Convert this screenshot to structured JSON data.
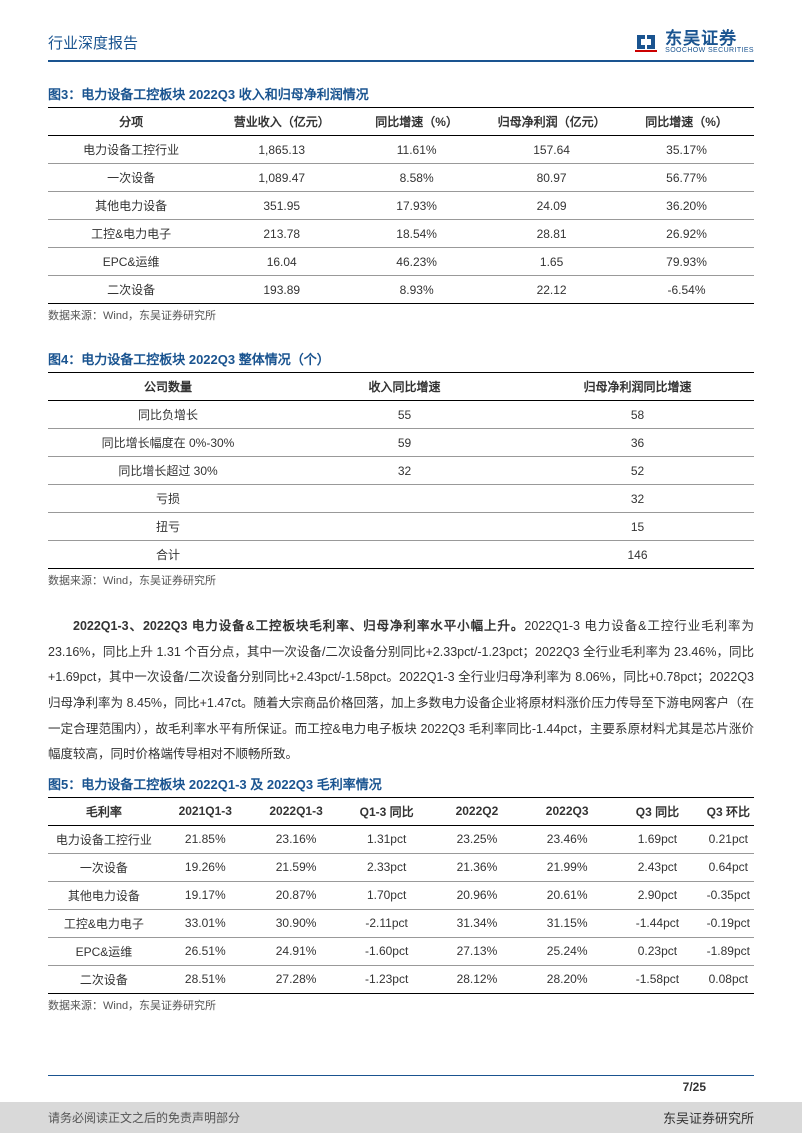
{
  "header": {
    "title": "行业深度报告",
    "logo_cn": "东吴证券",
    "logo_en": "SOOCHOW SECURITIES"
  },
  "fig3": {
    "title": "图3：电力设备工控板块 2022Q3 收入和归母净利润情况",
    "columns": [
      "分项",
      "营业收入（亿元）",
      "同比增速（%）",
      "归母净利润（亿元）",
      "同比增速（%）"
    ],
    "rows": [
      [
        "电力设备工控行业",
        "1,865.13",
        "11.61%",
        "157.64",
        "35.17%"
      ],
      [
        "一次设备",
        "1,089.47",
        "8.58%",
        "80.97",
        "56.77%"
      ],
      [
        "其他电力设备",
        "351.95",
        "17.93%",
        "24.09",
        "36.20%"
      ],
      [
        "工控&电力电子",
        "213.78",
        "18.54%",
        "28.81",
        "26.92%"
      ],
      [
        "EPC&运维",
        "16.04",
        "46.23%",
        "1.65",
        "79.93%"
      ],
      [
        "二次设备",
        "193.89",
        "8.93%",
        "22.12",
        "-6.54%"
      ]
    ],
    "source": "数据来源：Wind，东吴证券研究所"
  },
  "fig4": {
    "title": "图4：电力设备工控板块 2022Q3 整体情况（个）",
    "columns": [
      "公司数量",
      "收入同比增速",
      "归母净利润同比增速"
    ],
    "rows": [
      [
        "同比负增长",
        "55",
        "58"
      ],
      [
        "同比增长幅度在 0%-30%",
        "59",
        "36"
      ],
      [
        "同比增长超过 30%",
        "32",
        "52"
      ],
      [
        "亏损",
        "",
        "32"
      ],
      [
        "扭亏",
        "",
        "15"
      ],
      [
        "合计",
        "",
        "146"
      ]
    ],
    "source": "数据来源：Wind，东吴证券研究所"
  },
  "paragraph": {
    "bold": "2022Q1-3、2022Q3 电力设备&工控板块毛利率、归母净利率水平小幅上升。",
    "text": "2022Q1-3 电力设备&工控行业毛利率为 23.16%，同比上升 1.31 个百分点，其中一次设备/二次设备分别同比+2.33pct/-1.23pct；2022Q3 全行业毛利率为 23.46%，同比+1.69pct，其中一次设备/二次设备分别同比+2.43pct/-1.58pct。2022Q1-3 全行业归母净利率为 8.06%，同比+0.78pct；2022Q3 归母净利率为 8.45%，同比+1.47ct。随着大宗商品价格回落，加上多数电力设备企业将原材料涨价压力传导至下游电网客户（在一定合理范围内），故毛利率水平有所保证。而工控&电力电子板块 2022Q3 毛利率同比-1.44pct，主要系原材料尤其是芯片涨价幅度较高，同时价格端传导相对不顺畅所致。"
  },
  "fig5": {
    "title": "图5：电力设备工控板块 2022Q1-3 及 2022Q3 毛利率情况",
    "columns": [
      "毛利率",
      "2021Q1-3",
      "2022Q1-3",
      "Q1-3 同比",
      "2022Q2",
      "2022Q3",
      "Q3 同比",
      "Q3 环比"
    ],
    "rows": [
      [
        "电力设备工控行业",
        "21.85%",
        "23.16%",
        "1.31pct",
        "23.25%",
        "23.46%",
        "1.69pct",
        "0.21pct"
      ],
      [
        "一次设备",
        "19.26%",
        "21.59%",
        "2.33pct",
        "21.36%",
        "21.99%",
        "2.43pct",
        "0.64pct"
      ],
      [
        "其他电力设备",
        "19.17%",
        "20.87%",
        "1.70pct",
        "20.96%",
        "20.61%",
        "2.90pct",
        "-0.35pct"
      ],
      [
        "工控&电力电子",
        "33.01%",
        "30.90%",
        "-2.11pct",
        "31.34%",
        "31.15%",
        "-1.44pct",
        "-0.19pct"
      ],
      [
        "EPC&运维",
        "26.51%",
        "24.91%",
        "-1.60pct",
        "27.13%",
        "25.24%",
        "0.23pct",
        "-1.89pct"
      ],
      [
        "二次设备",
        "28.51%",
        "27.28%",
        "-1.23pct",
        "28.12%",
        "28.20%",
        "-1.58pct",
        "0.08pct"
      ]
    ],
    "source": "数据来源：Wind，东吴证券研究所"
  },
  "footer": {
    "page": "7/25",
    "disclaimer": "请务必阅读正文之后的免责声明部分",
    "org": "东吴证券研究所"
  },
  "colors": {
    "brand": "#1a5490",
    "text": "#333333",
    "border": "#000000",
    "row_border": "#999999",
    "footer_bg": "#d9d9d9"
  }
}
